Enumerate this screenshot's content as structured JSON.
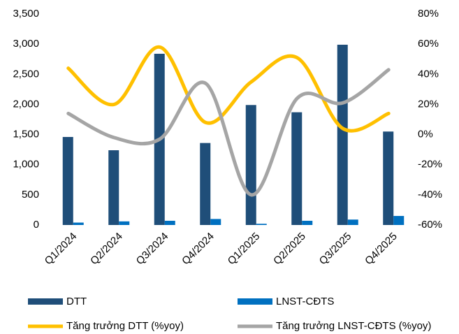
{
  "chart_data": {
    "type": "bar-line",
    "categories": [
      "Q1/2024",
      "Q2/2024",
      "Q3/2024",
      "Q4/2024",
      "Q1/2025",
      "Q2/2025",
      "Q3/2025",
      "Q4/2025"
    ],
    "series": [
      {
        "name": "DTT",
        "type": "bar",
        "color": "#1f4e79",
        "values": [
          1460,
          1240,
          2840,
          1360,
          1990,
          1870,
          2990,
          1550
        ]
      },
      {
        "name": "LNST-CĐTS",
        "type": "bar",
        "color": "#0070c0",
        "values": [
          40,
          60,
          70,
          100,
          20,
          70,
          90,
          150
        ]
      },
      {
        "name": "Tăng trưởng DTT (%yoy)",
        "type": "line",
        "axis": "y2",
        "color": "#ffc000",
        "values": [
          44,
          20,
          58,
          8,
          35,
          51,
          4,
          14
        ]
      },
      {
        "name": "Tăng trưởng LNST-CĐTS (%yoy)",
        "type": "line",
        "axis": "y2",
        "color": "#a5a5a5",
        "values": [
          14,
          -2,
          -3,
          34,
          -40,
          24,
          21,
          43
        ]
      }
    ],
    "ylim": [
      0,
      3500
    ],
    "yticks": [
      0,
      500,
      {
        "value": 1000,
        "label": "1,000"
      },
      {
        "value": 1500,
        "label": "1,500"
      },
      {
        "value": 2000,
        "label": "2,000"
      },
      {
        "value": 2500,
        "label": "2,500"
      },
      {
        "value": 3000,
        "label": "3,000"
      },
      {
        "value": 3500,
        "label": "3,500"
      }
    ],
    "y2lim": [
      -60,
      80
    ],
    "y2ticks": [
      {
        "value": -60,
        "label": "-60%"
      },
      {
        "value": -40,
        "label": "-40%"
      },
      {
        "value": -20,
        "label": "-20%"
      },
      {
        "value": 0,
        "label": "0%"
      },
      {
        "value": 20,
        "label": "20%"
      },
      {
        "value": 40,
        "label": "40%"
      },
      {
        "value": 60,
        "label": "60%"
      },
      {
        "value": 80,
        "label": "80%"
      }
    ],
    "grid": false,
    "legend": "bottom"
  }
}
